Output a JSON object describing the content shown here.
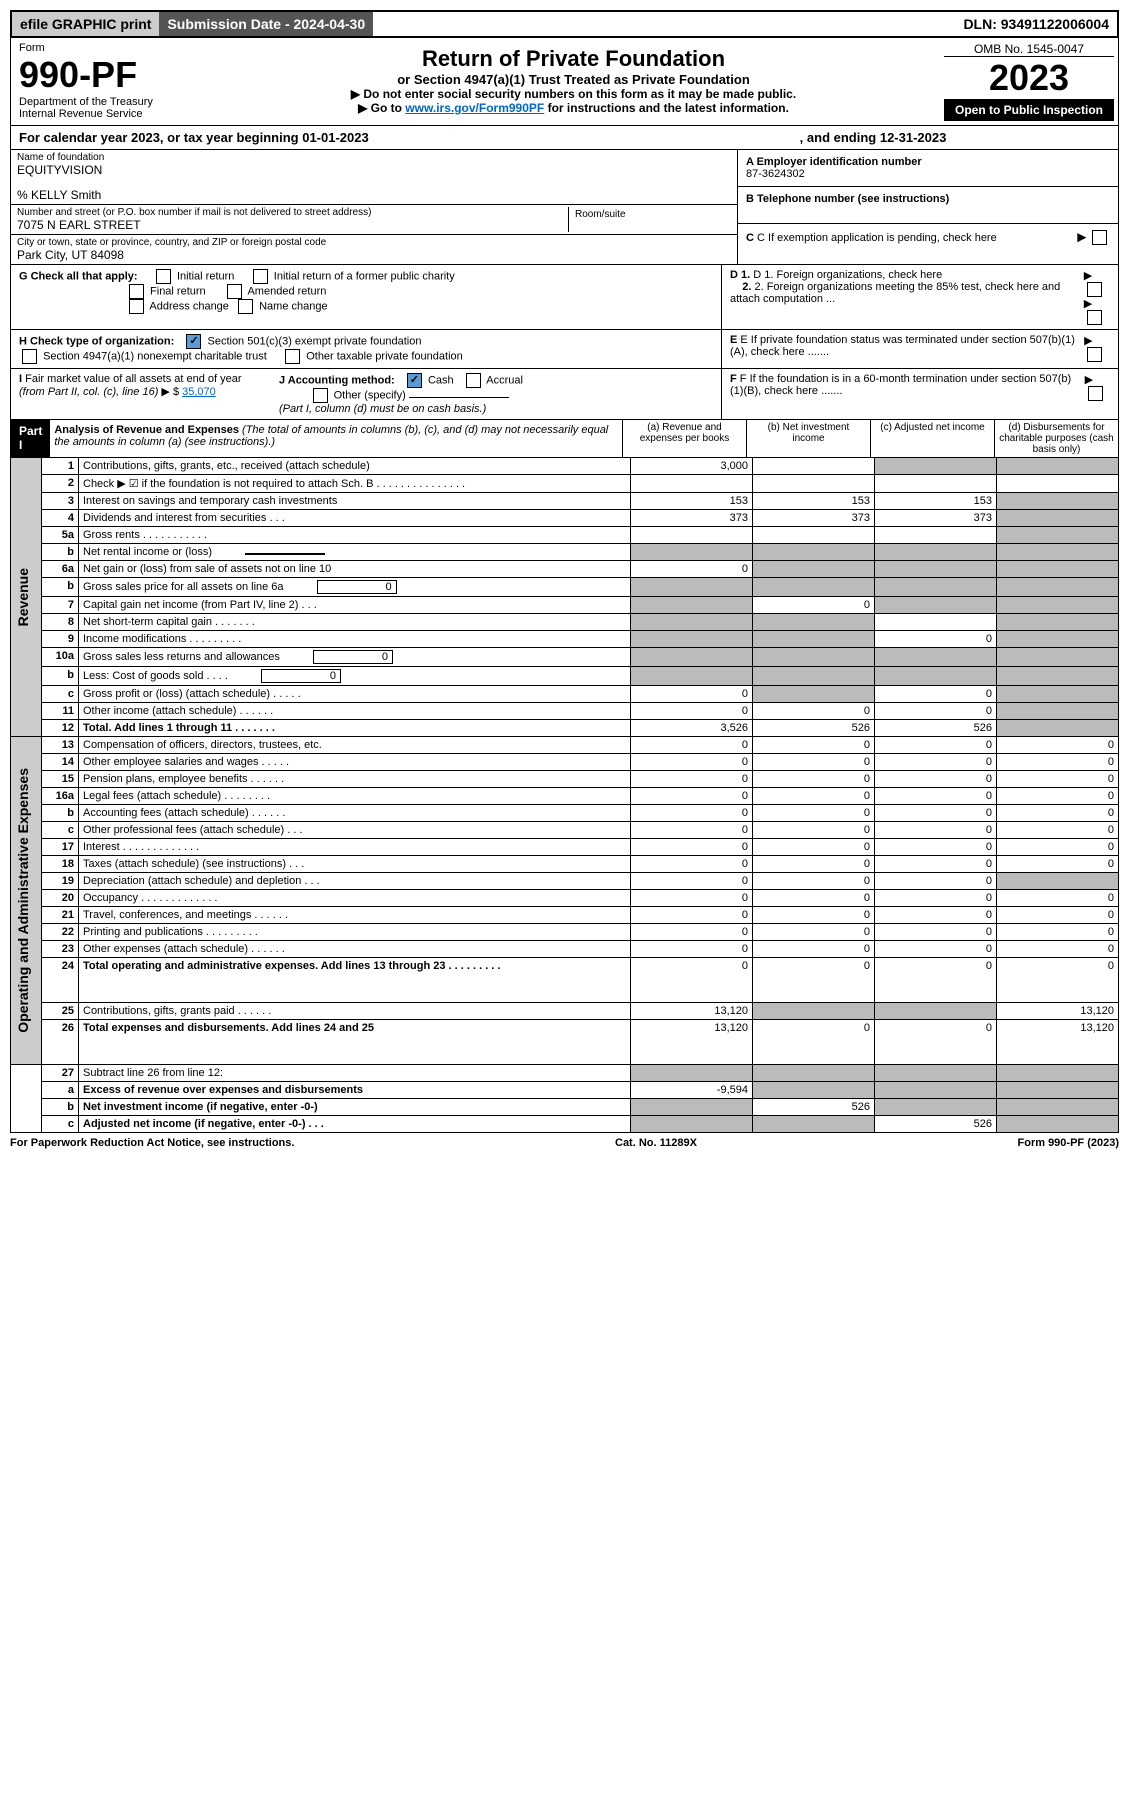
{
  "top": {
    "efile": "efile GRAPHIC print",
    "subdate_label": "Submission Date - 2024-04-30",
    "dln": "DLN: 93491122006004"
  },
  "header": {
    "form": "Form",
    "num": "990-PF",
    "dept": "Department of the Treasury",
    "irs": "Internal Revenue Service",
    "title": "Return of Private Foundation",
    "subtitle": "or Section 4947(a)(1) Trust Treated as Private Foundation",
    "note1": "▶ Do not enter social security numbers on this form as it may be made public.",
    "note2a": "▶ Go to ",
    "note2_link": "www.irs.gov/Form990PF",
    "note2b": " for instructions and the latest information.",
    "omb": "OMB No. 1545-0047",
    "year": "2023",
    "open": "Open to Public Inspection"
  },
  "calyear": {
    "prefix": "For calendar year 2023, or tax year beginning 01-01-2023",
    "suffix": ", and ending 12-31-2023"
  },
  "entity": {
    "name_lbl": "Name of foundation",
    "name": "EQUITYVISION",
    "care": "% KELLY Smith",
    "addr_lbl": "Number and street (or P.O. box number if mail is not delivered to street address)",
    "addr": "7075 N EARL STREET",
    "room_lbl": "Room/suite",
    "city_lbl": "City or town, state or province, country, and ZIP or foreign postal code",
    "city": "Park City, UT  84098",
    "a_lbl": "A Employer identification number",
    "a_val": "87-3624302",
    "b_lbl": "B Telephone number (see instructions)",
    "c_lbl": "C If exemption application is pending, check here",
    "d1": "D 1. Foreign organizations, check here",
    "d2": "2. Foreign organizations meeting the 85% test, check here and attach computation ...",
    "e": "E If private foundation status was terminated under section 507(b)(1)(A), check here .......",
    "f": "F If the foundation is in a 60-month termination under section 507(b)(1)(B), check here .......",
    "g": "G Check all that apply:",
    "g1": "Initial return",
    "g2": "Initial return of a former public charity",
    "g3": "Final return",
    "g4": "Amended return",
    "g5": "Address change",
    "g6": "Name change",
    "h": "H Check type of organization:",
    "h1": "Section 501(c)(3) exempt private foundation",
    "h2": "Section 4947(a)(1) nonexempt charitable trust",
    "h3": "Other taxable private foundation",
    "i": "I Fair market value of all assets at end of year (from Part II, col. (c), line 16) ▶ $",
    "i_val": "35,070",
    "j": "J Accounting method:",
    "j1": "Cash",
    "j2": "Accrual",
    "j3": "Other (specify)",
    "j_note": "(Part I, column (d) must be on cash basis.)"
  },
  "part1": {
    "part": "Part I",
    "title": "Analysis of Revenue and Expenses",
    "note": " (The total of amounts in columns (b), (c), and (d) may not necessarily equal the amounts in column (a) (see instructions).)",
    "cola": "(a)   Revenue and expenses per books",
    "colb": "(b)   Net investment income",
    "colc": "(c)   Adjusted net income",
    "cold": "(d)   Disbursements for charitable purposes (cash basis only)"
  },
  "sections": {
    "rev": "Revenue",
    "ops": "Operating and Administrative Expenses"
  },
  "rows": [
    {
      "n": "1",
      "d": "Contributions, gifts, grants, etc., received (attach schedule)",
      "a": "3,000",
      "bg": [
        "",
        "",
        "g",
        "g"
      ]
    },
    {
      "n": "2",
      "d": "Check ▶ ☑ if the foundation is not required to attach Sch. B    .   .   .   .   .   .   .   .   .   .   .   .   .   .   .",
      "bg": [
        "",
        "",
        "",
        ""
      ]
    },
    {
      "n": "3",
      "d": "Interest on savings and temporary cash investments",
      "a": "153",
      "b": "153",
      "c": "153",
      "bg": [
        "",
        "",
        "",
        "g"
      ]
    },
    {
      "n": "4",
      "d": "Dividends and interest from securities    .   .   .",
      "a": "373",
      "b": "373",
      "c": "373",
      "bg": [
        "",
        "",
        "",
        "g"
      ]
    },
    {
      "n": "5a",
      "d": "Gross rents    .   .   .   .   .   .   .   .   .   .   .",
      "bg": [
        "",
        "",
        "",
        "g"
      ]
    },
    {
      "n": "b",
      "d": "Net rental income or (loss)",
      "mini": "",
      "bg": [
        "g",
        "g",
        "g",
        "g"
      ]
    },
    {
      "n": "6a",
      "d": "Net gain or (loss) from sale of assets not on line 10",
      "a": "0",
      "bg": [
        "",
        "g",
        "g",
        "g"
      ]
    },
    {
      "n": "b",
      "d": "Gross sales price for all assets on line 6a",
      "mini": "0",
      "bg": [
        "g",
        "g",
        "g",
        "g"
      ]
    },
    {
      "n": "7",
      "d": "Capital gain net income (from Part IV, line 2)   .   .   .",
      "b": "0",
      "bg": [
        "g",
        "",
        "g",
        "g"
      ]
    },
    {
      "n": "8",
      "d": "Net short-term capital gain   .   .   .   .   .   .   .",
      "bg": [
        "g",
        "g",
        "",
        "g"
      ]
    },
    {
      "n": "9",
      "d": "Income modifications   .   .   .   .   .   .   .   .   .",
      "c": "0",
      "bg": [
        "g",
        "g",
        "",
        "g"
      ]
    },
    {
      "n": "10a",
      "d": "Gross sales less returns and allowances",
      "mini": "0",
      "bg": [
        "g",
        "g",
        "g",
        "g"
      ]
    },
    {
      "n": "b",
      "d": "Less: Cost of goods sold    .   .   .   .",
      "mini": "0",
      "bg": [
        "g",
        "g",
        "g",
        "g"
      ]
    },
    {
      "n": "c",
      "d": "Gross profit or (loss) (attach schedule)    .   .   .   .   .",
      "a": "0",
      "c": "0",
      "bg": [
        "",
        "g",
        "",
        "g"
      ]
    },
    {
      "n": "11",
      "d": "Other income (attach schedule)    .   .   .   .   .   .",
      "a": "0",
      "b": "0",
      "c": "0",
      "bg": [
        "",
        "",
        "",
        "g"
      ]
    },
    {
      "n": "12",
      "d": "Total. Add lines 1 through 11    .   .   .   .   .   .   .",
      "a": "3,526",
      "b": "526",
      "c": "526",
      "bold": true,
      "bg": [
        "",
        "",
        "",
        "g"
      ]
    }
  ],
  "ops_rows": [
    {
      "n": "13",
      "d": "Compensation of officers, directors, trustees, etc.",
      "a": "0",
      "b": "0",
      "c": "0",
      "e": "0"
    },
    {
      "n": "14",
      "d": "Other employee salaries and wages    .   .   .   .   .",
      "a": "0",
      "b": "0",
      "c": "0",
      "e": "0"
    },
    {
      "n": "15",
      "d": "Pension plans, employee benefits  .   .   .   .   .   .",
      "a": "0",
      "b": "0",
      "c": "0",
      "e": "0"
    },
    {
      "n": "16a",
      "d": "Legal fees (attach schedule)  .   .   .   .   .   .   .   .",
      "a": "0",
      "b": "0",
      "c": "0",
      "e": "0"
    },
    {
      "n": "b",
      "d": "Accounting fees (attach schedule)  .   .   .   .   .   .",
      "a": "0",
      "b": "0",
      "c": "0",
      "e": "0"
    },
    {
      "n": "c",
      "d": "Other professional fees (attach schedule)    .   .   .",
      "a": "0",
      "b": "0",
      "c": "0",
      "e": "0"
    },
    {
      "n": "17",
      "d": "Interest  .   .   .   .   .   .   .   .   .   .   .   .   .",
      "a": "0",
      "b": "0",
      "c": "0",
      "e": "0"
    },
    {
      "n": "18",
      "d": "Taxes (attach schedule) (see instructions)    .   .   .",
      "a": "0",
      "b": "0",
      "c": "0",
      "e": "0"
    },
    {
      "n": "19",
      "d": "Depreciation (attach schedule) and depletion   .   .   .",
      "a": "0",
      "b": "0",
      "c": "0",
      "bg": [
        "",
        "",
        "",
        "g"
      ]
    },
    {
      "n": "20",
      "d": "Occupancy  .   .   .   .   .   .   .   .   .   .   .   .   .",
      "a": "0",
      "b": "0",
      "c": "0",
      "e": "0"
    },
    {
      "n": "21",
      "d": "Travel, conferences, and meetings  .   .   .   .   .   .",
      "a": "0",
      "b": "0",
      "c": "0",
      "e": "0"
    },
    {
      "n": "22",
      "d": "Printing and publications  .   .   .   .   .   .   .   .   .",
      "a": "0",
      "b": "0",
      "c": "0",
      "e": "0"
    },
    {
      "n": "23",
      "d": "Other expenses (attach schedule)  .   .   .   .   .   .",
      "a": "0",
      "b": "0",
      "c": "0",
      "e": "0"
    },
    {
      "n": "24",
      "d": "Total operating and administrative expenses. Add lines 13 through 23   .   .   .   .   .   .   .   .   .",
      "a": "0",
      "b": "0",
      "c": "0",
      "e": "0",
      "bold": true,
      "tall": true
    },
    {
      "n": "25",
      "d": "Contributions, gifts, grants paid    .   .   .   .   .   .",
      "a": "13,120",
      "e": "13,120",
      "bg": [
        "",
        "g",
        "g",
        ""
      ]
    },
    {
      "n": "26",
      "d": "Total expenses and disbursements. Add lines 24 and 25",
      "a": "13,120",
      "b": "0",
      "c": "0",
      "e": "13,120",
      "bold": true,
      "tall": true
    }
  ],
  "bottom_rows": [
    {
      "n": "27",
      "d": "Subtract line 26 from line 12:",
      "bg": [
        "g",
        "g",
        "g",
        "g"
      ]
    },
    {
      "n": "a",
      "d": "Excess of revenue over expenses and disbursements",
      "a": "-9,594",
      "bold": true,
      "bg": [
        "",
        "g",
        "g",
        "g"
      ]
    },
    {
      "n": "b",
      "d": "Net investment income (if negative, enter -0-)",
      "b": "526",
      "bold": true,
      "bg": [
        "g",
        "",
        "g",
        "g"
      ]
    },
    {
      "n": "c",
      "d": "Adjusted net income (if negative, enter -0-)   .   .   .",
      "c": "526",
      "bold": true,
      "bg": [
        "g",
        "g",
        "",
        "g"
      ]
    }
  ],
  "footer": {
    "left": "For Paperwork Reduction Act Notice, see instructions.",
    "mid": "Cat. No. 11289X",
    "right": "Form 990-PF (2023)"
  },
  "colors": {
    "grey": "#bbbbbb",
    "headbg": "#000000"
  }
}
